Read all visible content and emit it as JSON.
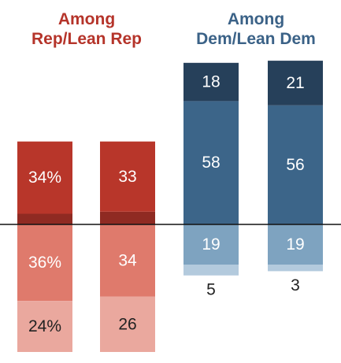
{
  "chart_data": {
    "type": "bar",
    "groups": [
      {
        "title": [
          "Among",
          "Rep/Lean Rep"
        ],
        "color": "#b5342a",
        "bars": [
          {
            "above": [
              {
                "value": 5,
                "label": "5%",
                "color": "#8f2a22"
              },
              {
                "value": 34,
                "label": "34%",
                "color": "#b8362a"
              }
            ],
            "below": [
              {
                "value": 36,
                "label": "36%",
                "color": "#df7a6c"
              },
              {
                "value": 24,
                "label": "24%",
                "color": "#eaa89e"
              }
            ]
          },
          {
            "above": [
              {
                "value": 6,
                "label": "6",
                "color": "#8f2a22"
              },
              {
                "value": 33,
                "label": "33",
                "color": "#b8362a"
              }
            ],
            "below": [
              {
                "value": 34,
                "label": "34",
                "color": "#df7a6c"
              },
              {
                "value": 26,
                "label": "26",
                "color": "#eaa89e"
              }
            ]
          }
        ]
      },
      {
        "title": [
          "Among",
          "Dem/Lean Dem"
        ],
        "color": "#3b6287",
        "bars": [
          {
            "above": [
              {
                "value": 58,
                "label": "58",
                "color": "#3c6589"
              },
              {
                "value": 18,
                "label": "18",
                "color": "#26405a"
              }
            ],
            "below": [
              {
                "value": 19,
                "label": "19",
                "color": "#7ea3c0"
              },
              {
                "value": 5,
                "label": "5",
                "color": "#b3cadd"
              }
            ]
          },
          {
            "above": [
              {
                "value": 56,
                "label": "56",
                "color": "#3c6589"
              },
              {
                "value": 21,
                "label": "21",
                "color": "#26405a"
              }
            ],
            "below": [
              {
                "value": 19,
                "label": "19",
                "color": "#7ea3c0"
              },
              {
                "value": 3,
                "label": "3",
                "color": "#b3cadd"
              }
            ]
          }
        ]
      }
    ],
    "baseline": 0,
    "grid": false,
    "legend": "none"
  }
}
